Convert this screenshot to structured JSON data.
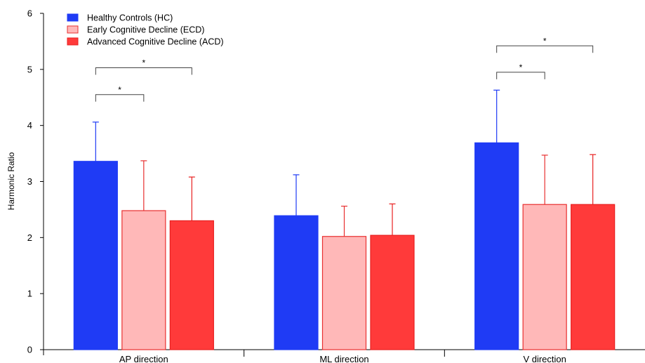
{
  "chart_data": {
    "type": "bar",
    "ylabel": "Harmonic Ratio",
    "ylim": [
      0,
      6
    ],
    "yticks": [
      "0",
      "1",
      "2",
      "3",
      "4",
      "5",
      "6"
    ],
    "categories": [
      "AP direction",
      "ML direction",
      "V direction"
    ],
    "series": [
      {
        "name": "Healthy Controls (HC)",
        "values": [
          3.36,
          2.39,
          3.69
        ],
        "errors": [
          0.7,
          0.73,
          0.94
        ],
        "fill": "#1f3bf5",
        "stroke": "#1f3bf5"
      },
      {
        "name": "Early Cognitive Decline (ECD)",
        "values": [
          2.48,
          2.02,
          2.59
        ],
        "errors": [
          0.89,
          0.54,
          0.88
        ],
        "fill": "#ffb8b8",
        "stroke": "#e83030"
      },
      {
        "name": "Advanced Cognitive Decline (ACD)",
        "values": [
          2.3,
          2.04,
          2.59
        ],
        "errors": [
          0.78,
          0.56,
          0.89
        ],
        "fill": "#ff3a3a",
        "stroke": "#e82020"
      }
    ],
    "legend_position": "top-left",
    "significance": [
      {
        "category": 0,
        "from_series": 0,
        "to_series": 1,
        "level": 4.55,
        "label": "*"
      },
      {
        "category": 0,
        "from_series": 0,
        "to_series": 2,
        "level": 5.03,
        "label": "*"
      },
      {
        "category": 2,
        "from_series": 0,
        "to_series": 1,
        "level": 4.95,
        "label": "*"
      },
      {
        "category": 2,
        "from_series": 0,
        "to_series": 2,
        "level": 5.42,
        "label": "*"
      }
    ]
  }
}
